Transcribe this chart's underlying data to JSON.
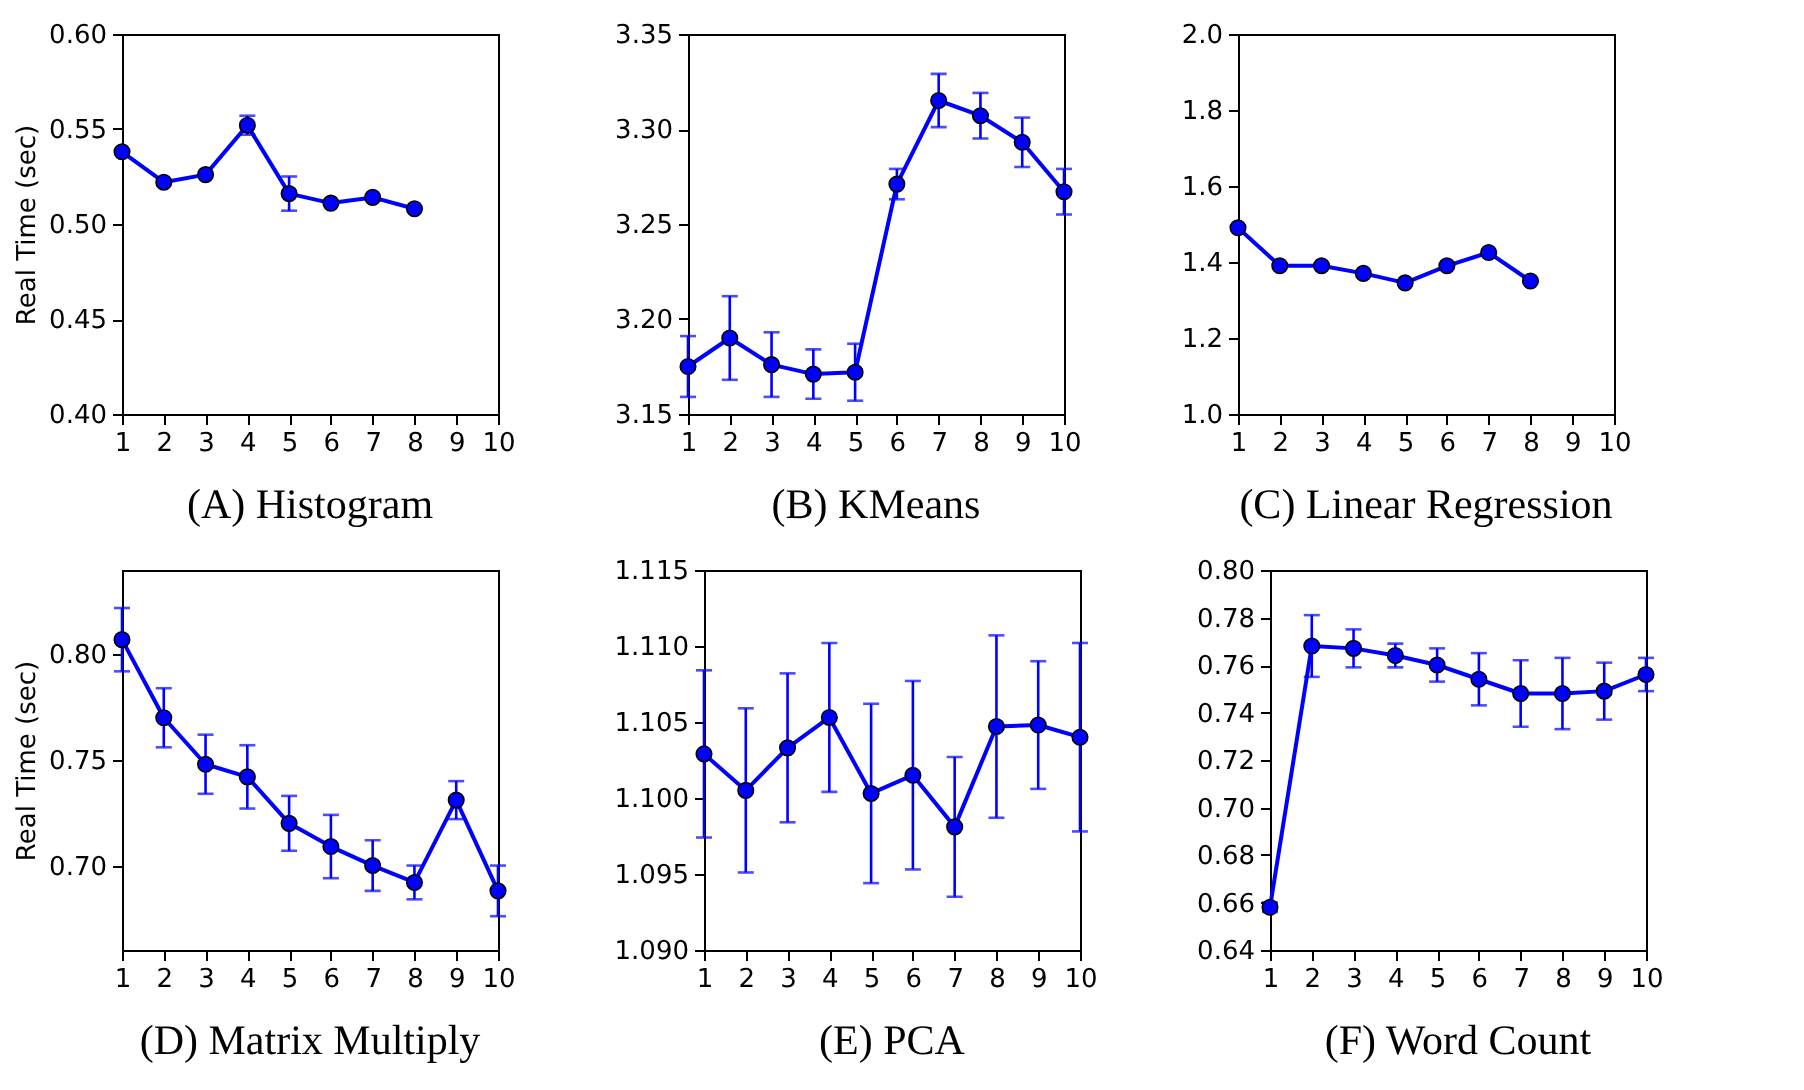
{
  "chart_data": [
    {
      "type": "line",
      "title": "(A) Histogram",
      "ylabel": "Real Time (sec)",
      "xlim": [
        1,
        10
      ],
      "xticks": [
        1,
        2,
        3,
        4,
        5,
        6,
        7,
        8,
        9,
        10
      ],
      "ylim": [
        0.4,
        0.6
      ],
      "yticks": [
        {
          "value": 0.4,
          "label": "0.40"
        },
        {
          "value": 0.45,
          "label": "0.45"
        },
        {
          "value": 0.5,
          "label": "0.50"
        },
        {
          "value": 0.55,
          "label": "0.55"
        },
        {
          "value": 0.6,
          "label": "0.60"
        }
      ],
      "marker": "circle",
      "line_style": "solid",
      "series": [
        {
          "color": "#0000ff",
          "x": [
            1,
            2,
            3,
            4,
            5,
            6,
            7,
            8
          ],
          "values": [
            0.538,
            0.522,
            0.526,
            0.552,
            0.516,
            0.511,
            0.514,
            0.508
          ],
          "errors": [
            null,
            null,
            null,
            0.005,
            0.009,
            null,
            null,
            null
          ]
        }
      ]
    },
    {
      "type": "line",
      "title": "(B) KMeans",
      "x": [
        1,
        2,
        3,
        4,
        5,
        6,
        7,
        8,
        9,
        10
      ],
      "xlim": [
        1,
        10
      ],
      "xticks": [
        1,
        2,
        3,
        4,
        5,
        6,
        7,
        8,
        9,
        10
      ],
      "ylim": [
        3.15,
        3.35
      ],
      "yticks": [
        3.15,
        {
          "value": 3.2,
          "label": "3.20"
        },
        3.25,
        {
          "value": 3.3,
          "label": "3.30"
        },
        3.35
      ],
      "marker": "circle",
      "line_style": "solid",
      "series": [
        {
          "color": "#0000ff",
          "values": [
            3.175,
            3.19,
            3.176,
            3.171,
            3.172,
            3.271,
            3.315,
            3.307,
            3.293,
            3.267
          ],
          "errors": [
            0.016,
            0.022,
            0.017,
            0.013,
            0.015,
            0.008,
            0.014,
            0.012,
            0.013,
            0.012
          ]
        }
      ]
    },
    {
      "type": "line",
      "title": "(C) Linear Regression",
      "xlim": [
        1,
        10
      ],
      "xticks": [
        1,
        2,
        3,
        4,
        5,
        6,
        7,
        8,
        9,
        10
      ],
      "ylim": [
        1.0,
        2.0
      ],
      "yticks": [
        {
          "value": 1,
          "label": "1.0"
        },
        1.2,
        1.4,
        1.6,
        1.8,
        {
          "value": 2,
          "label": "2.0"
        }
      ],
      "marker": "circle",
      "line_style": "solid",
      "series": [
        {
          "color": "#0000ff",
          "x": [
            1,
            2,
            3,
            4,
            5,
            6,
            7,
            8
          ],
          "values": [
            1.49,
            1.39,
            1.39,
            1.37,
            1.345,
            1.39,
            1.425,
            1.35
          ]
        }
      ]
    },
    {
      "type": "line",
      "title": "(D) Matrix Multiply",
      "ylabel": "Real Time (sec)",
      "x": [
        1,
        2,
        3,
        4,
        5,
        6,
        7,
        8,
        9,
        10
      ],
      "xlim": [
        1,
        10
      ],
      "xticks": [
        1,
        2,
        3,
        4,
        5,
        6,
        7,
        8,
        9,
        10
      ],
      "ylim": [
        0.66,
        0.84
      ],
      "yticks": [
        {
          "value": 0.7,
          "label": "0.70"
        },
        0.75,
        {
          "value": 0.8,
          "label": "0.80"
        }
      ],
      "marker": "circle",
      "line_style": "solid",
      "series": [
        {
          "color": "#0000ff",
          "values": [
            0.807,
            0.77,
            0.748,
            0.742,
            0.72,
            0.709,
            0.7,
            0.692,
            0.731,
            0.688
          ],
          "errors": [
            0.015,
            0.014,
            0.014,
            0.015,
            0.013,
            0.015,
            0.012,
            0.008,
            0.009,
            0.012
          ]
        }
      ]
    },
    {
      "type": "line",
      "title": "(E) PCA",
      "x": [
        1,
        2,
        3,
        4,
        5,
        6,
        7,
        8,
        9,
        10
      ],
      "xlim": [
        1,
        10
      ],
      "xticks": [
        1,
        2,
        3,
        4,
        5,
        6,
        7,
        8,
        9,
        10
      ],
      "ylim": [
        1.09,
        1.115
      ],
      "yticks": [
        {
          "value": 1.09,
          "label": "1.090"
        },
        1.095,
        {
          "value": 1.1,
          "label": "1.100"
        },
        1.105,
        {
          "value": 1.11,
          "label": "1.110"
        },
        1.115
      ],
      "marker": "circle",
      "line_style": "solid",
      "series": [
        {
          "color": "#0000ff",
          "values": [
            1.1029,
            1.1005,
            1.1033,
            1.1053,
            1.1003,
            1.1015,
            1.0981,
            1.1047,
            1.1048,
            1.104
          ],
          "errors": [
            0.0055,
            0.0054,
            0.0049,
            0.0049,
            0.0059,
            0.0062,
            0.0046,
            0.006,
            0.0042,
            0.0062
          ]
        }
      ]
    },
    {
      "type": "line",
      "title": "(F) Word Count",
      "x": [
        1,
        2,
        3,
        4,
        5,
        6,
        7,
        8,
        9,
        10
      ],
      "xlim": [
        1,
        10
      ],
      "xticks": [
        1,
        2,
        3,
        4,
        5,
        6,
        7,
        8,
        9,
        10
      ],
      "ylim": [
        0.64,
        0.8
      ],
      "yticks": [
        0.64,
        0.66,
        0.68,
        {
          "value": 0.7,
          "label": "0.70"
        },
        0.72,
        0.74,
        0.76,
        0.78,
        {
          "value": 0.8,
          "label": "0.80"
        }
      ],
      "marker": "circle",
      "line_style": "solid",
      "series": [
        {
          "color": "#0000ff",
          "values": [
            0.658,
            0.768,
            0.767,
            0.764,
            0.76,
            0.754,
            0.748,
            0.748,
            0.749,
            0.756
          ],
          "errors": [
            0.002,
            0.013,
            0.008,
            0.005,
            0.007,
            0.011,
            0.014,
            0.015,
            0.012,
            0.007
          ]
        }
      ]
    }
  ]
}
